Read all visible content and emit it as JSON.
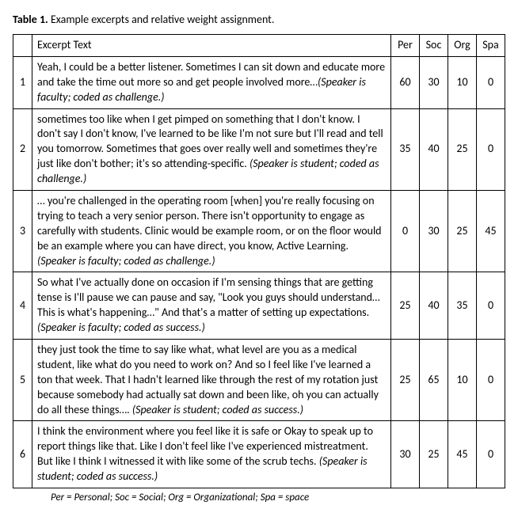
{
  "caption": {
    "label": "Table 1.",
    "text": "Example excerpts and relative weight assignment."
  },
  "headers": {
    "excerpt": "Excerpt Text",
    "per": "Per",
    "soc": "Soc",
    "org": "Org",
    "spa": "Spa"
  },
  "rows": [
    {
      "n": "1",
      "text": "Yeah, I could be a better listener. Sometimes I can sit down and educate more and take the time out more so and get people involved more…",
      "annotation": "(Speaker is faculty; coded as challenge.)",
      "per": "60",
      "soc": "30",
      "org": "10",
      "spa": "0"
    },
    {
      "n": "2",
      "text": "sometimes too like when I get pimped on something that I don't know. I don't say I don't know, I've learned to be like I'm not sure but I'll read and tell you tomorrow.  Sometimes that goes over really well and sometimes they're just like don't bother; it's so attending-specific. ",
      "annotation": "(Speaker is student; coded as challenge.)",
      "per": "35",
      "soc": "40",
      "org": "25",
      "spa": "0"
    },
    {
      "n": "3",
      "text": "… you're challenged in the operating room [when] you're really focusing on trying to teach a very senior person. There isn't opportunity to engage as carefully with students. Clinic would be example room, or on the floor would be an example where you can have direct, you know, Active Learning. ",
      "annotation": "(Speaker is faculty; coded as challenge.)",
      "per": "0",
      "soc": "30",
      "org": "25",
      "spa": "45"
    },
    {
      "n": "4",
      "text": "So what I've actually done on occasion if I'm sensing things that are getting tense is I'll pause we can pause and say, \"Look you guys should understand…This is what's happening…\" And that's a matter of setting up expectations. ",
      "annotation": "(Speaker is faculty; coded as success.)",
      "per": "25",
      "soc": "40",
      "org": "35",
      "spa": "0"
    },
    {
      "n": "5",
      "text": "they just took the time to say like what, what level are you as a medical student, like what do you need to work on? And so I feel like I've learned a ton that week. That I hadn't learned like through the rest of my rotation just because somebody had actually sat down and been like, oh you can actually do all these things…. ",
      "annotation": "(Speaker is student; coded as success.)",
      "per": "25",
      "soc": "65",
      "org": "10",
      "spa": "0"
    },
    {
      "n": "6",
      "text": "I think the environment where you feel like it is safe or Okay to speak up to report things like that. Like I don't feel like I've experienced mistreatment. But like I think I witnessed it with like some of the scrub techs. ",
      "annotation": "(Speaker is student; coded as success.)",
      "per": "30",
      "soc": "25",
      "org": "45",
      "spa": "0"
    }
  ],
  "footnote": "Per = Personal; Soc = Social; Org = Organizational; Spa = space"
}
